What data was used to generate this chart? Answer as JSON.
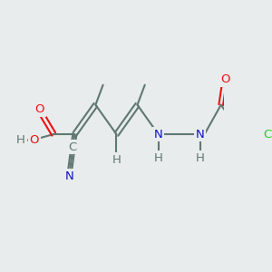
{
  "background_color": "#e8ecec",
  "bond_color": "#607870",
  "atom_colors": {
    "O": "#ee1111",
    "N": "#1111cc",
    "Cl": "#22cc22",
    "H": "#607870",
    "C": "#607870"
  },
  "bond_lw": 1.5,
  "font_size": 9.5
}
